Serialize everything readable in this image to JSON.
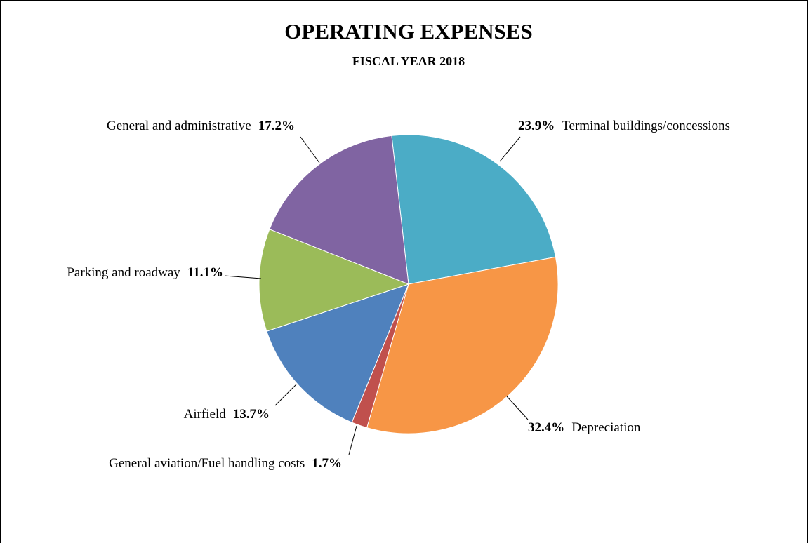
{
  "chart_data": {
    "type": "pie",
    "title": "OPERATING EXPENSES",
    "subtitle": "FISCAL YEAR 2018",
    "categories": [
      "Terminal buildings/concessions",
      "Depreciation",
      "General aviation/Fuel handling costs",
      "Airfield",
      "Parking and roadway",
      "General and administrative"
    ],
    "values": [
      23.9,
      32.4,
      1.7,
      13.7,
      11.1,
      17.2
    ],
    "value_labels": [
      "23.9%",
      "32.4%",
      "1.7%",
      "13.7%",
      "11.1%",
      "17.2%"
    ],
    "colors": [
      "#4bacc6",
      "#f79646",
      "#c0504d",
      "#4f81bd",
      "#9bbb59",
      "#8064a2"
    ]
  }
}
